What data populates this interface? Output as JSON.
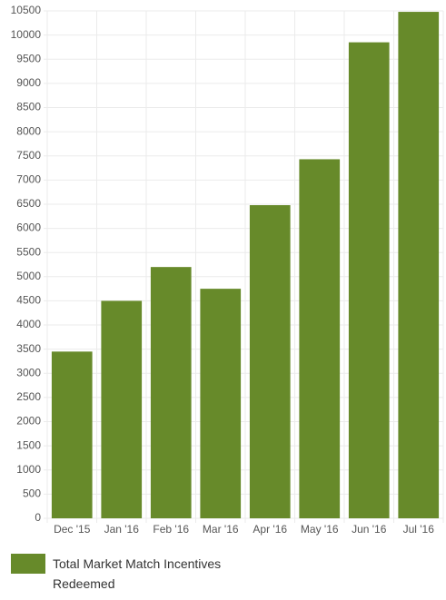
{
  "chart_data": {
    "type": "bar",
    "categories": [
      "Dec '15",
      "Jan '16",
      "Feb '16",
      "Mar '16",
      "Apr '16",
      "May '16",
      "Jun '16",
      "Jul '16"
    ],
    "series": [
      {
        "name": "Total Market Match Incentives Redeemed",
        "color": "#678a2a",
        "values": [
          3450,
          4500,
          5200,
          4750,
          6480,
          7430,
          9850,
          10480
        ]
      }
    ],
    "ylim": [
      0,
      10500
    ],
    "yticks": [
      0,
      500,
      1000,
      1500,
      2000,
      2500,
      3000,
      3500,
      4000,
      4500,
      5000,
      5500,
      6000,
      6500,
      7000,
      7500,
      8000,
      8500,
      9000,
      9500,
      10000,
      10500
    ],
    "grid": true
  }
}
